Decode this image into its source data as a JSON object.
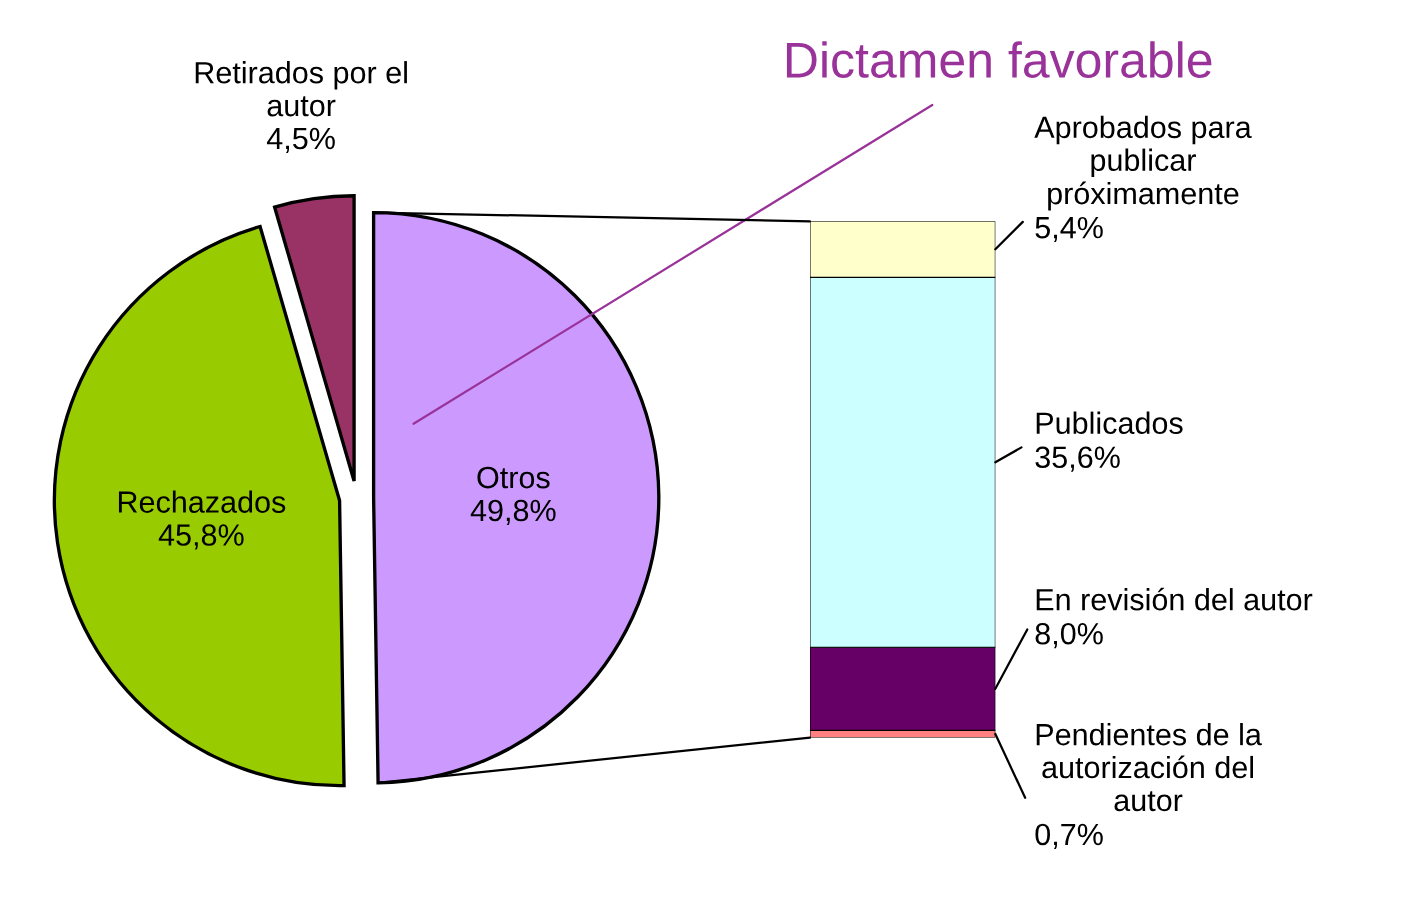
{
  "chart_data": [
    {
      "type": "pie",
      "title": "Dictamen favorable",
      "categories": [
        "Otros",
        "Rechazados",
        "Retirados por el\nautor"
      ],
      "values": [
        49.8,
        45.8,
        4.5
      ],
      "value_labels": [
        "49,8%",
        "45,8%",
        "4,5%"
      ],
      "colors": [
        "#cc99ff",
        "#99cc00",
        "#993366"
      ],
      "legend": false
    },
    {
      "type": "bar",
      "stacked": true,
      "categories": [
        null
      ],
      "series": [
        {
          "name": "Pendientes de la\nautorización del\nautor",
          "color": "#ff8080",
          "values": [
            0.7
          ],
          "value_labels": [
            "0,7%"
          ]
        },
        {
          "name": "En revisión del autor",
          "color": "#660066",
          "values": [
            8.0
          ],
          "value_labels": [
            "8,0%"
          ]
        },
        {
          "name": "Publicados",
          "color": "#ccffff",
          "values": [
            35.6
          ],
          "value_labels": [
            "35,6%"
          ]
        },
        {
          "name": "Aprobados para\npublicar\npróximamente",
          "color": "#ffffcc",
          "values": [
            5.4
          ],
          "value_labels": [
            "5,4%"
          ]
        }
      ],
      "legend": false
    }
  ]
}
